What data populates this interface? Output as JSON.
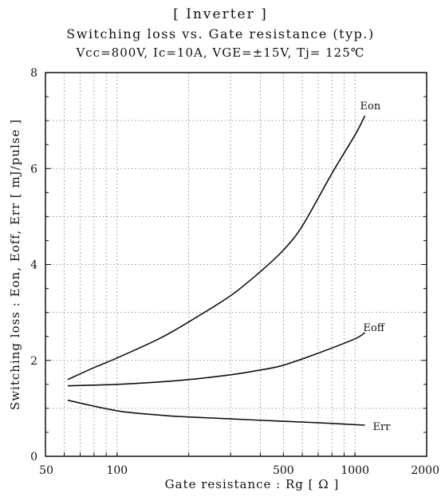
{
  "title_lines": [
    "[ Inverter ]",
    "Switching loss vs. Gate resistance (typ.)",
    "Vcc=800V, Ic=10A, VGE=±15V, Tj= 125℃"
  ],
  "chart_data": {
    "type": "line",
    "title": "[ Inverter ] Switching loss vs. Gate resistance (typ.)",
    "subtitle": "Vcc=800V, Ic=10A, VGE=±15V, Tj= 125℃",
    "xlabel": "Gate resistance : Rg [ Ω ]",
    "ylabel": "Switching loss : Eon, Eoff, Err [ mJ/pulse ]",
    "xscale": "log",
    "xlim": [
      50,
      2000
    ],
    "ylim": [
      0,
      8
    ],
    "xticks": [
      50,
      100,
      500,
      1000,
      2000
    ],
    "xtick_labels": [
      "50",
      "100",
      "500",
      "1000",
      "2000"
    ],
    "yticks": [
      0,
      2,
      4,
      6,
      8
    ],
    "ytick_labels": [
      "0",
      "2",
      "4",
      "6",
      "8"
    ],
    "grid": "dotted",
    "series": [
      {
        "name": "Eon",
        "x": [
          62,
          80,
          100,
          150,
          200,
          300,
          400,
          500,
          600,
          800,
          1000,
          1100
        ],
        "y": [
          1.6,
          1.85,
          2.05,
          2.45,
          2.8,
          3.35,
          3.85,
          4.3,
          4.8,
          5.9,
          6.7,
          7.1
        ]
      },
      {
        "name": "Eoff",
        "x": [
          62,
          100,
          150,
          200,
          300,
          400,
          500,
          700,
          1000,
          1100
        ],
        "y": [
          1.47,
          1.5,
          1.55,
          1.6,
          1.7,
          1.8,
          1.9,
          2.15,
          2.45,
          2.58
        ]
      },
      {
        "name": "Err",
        "x": [
          62,
          100,
          150,
          200,
          300,
          500,
          700,
          1000,
          1100
        ],
        "y": [
          1.17,
          0.95,
          0.86,
          0.82,
          0.78,
          0.73,
          0.7,
          0.66,
          0.65
        ]
      }
    ]
  }
}
